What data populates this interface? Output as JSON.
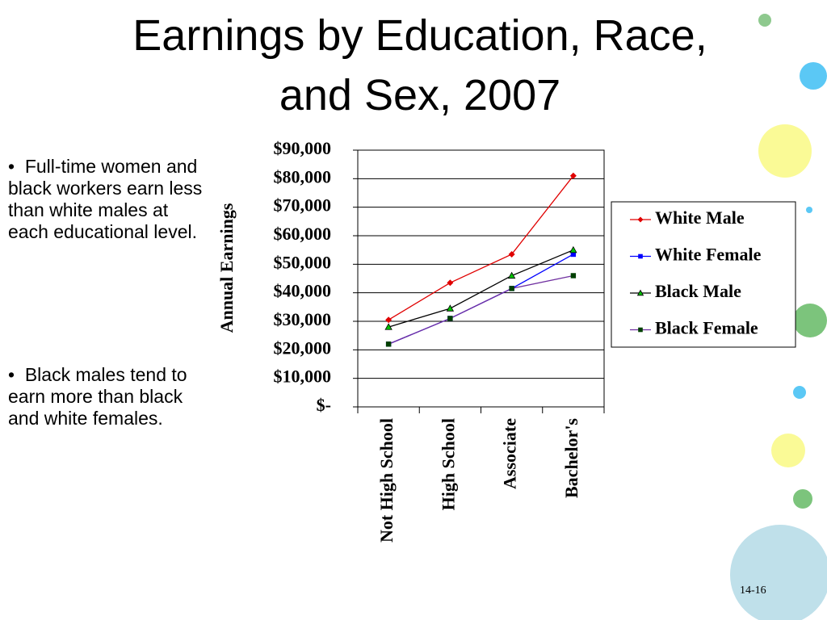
{
  "title": [
    "Earnings by  Education, Race,",
    "and Sex, 2007"
  ],
  "bullets": [
    "Full-time women and black workers earn less than white males at each educational level.",
    "Black males tend to earn more than black and white females."
  ],
  "page_number": "14-16",
  "chart_data": {
    "type": "line",
    "y_label": "Annual Earnings",
    "categories": [
      "Not High School",
      "High School",
      "Associate",
      "Bachelor's"
    ],
    "ylim": [
      0,
      90000
    ],
    "yticks": [
      {
        "value": 0,
        "label": "$-"
      },
      {
        "value": 10000,
        "label": "$10,000"
      },
      {
        "value": 20000,
        "label": "$20,000"
      },
      {
        "value": 30000,
        "label": "$30,000"
      },
      {
        "value": 40000,
        "label": "$40,000"
      },
      {
        "value": 50000,
        "label": "$50,000"
      },
      {
        "value": 60000,
        "label": "$60,000"
      },
      {
        "value": 70000,
        "label": "$70,000"
      },
      {
        "value": 80000,
        "label": "$80,000"
      },
      {
        "value": 90000,
        "label": "$90,000"
      }
    ],
    "grid": true,
    "series": [
      {
        "name": "White Male",
        "color": "#e00000",
        "marker": "diamond",
        "marker_color": "#e00000",
        "values": [
          30500,
          43500,
          53500,
          81000
        ]
      },
      {
        "name": "White Female",
        "color": "#0000ff",
        "marker": "square",
        "marker_color": "#0000ff",
        "values": [
          22000,
          31000,
          41500,
          53500
        ]
      },
      {
        "name": "Black Male",
        "color": "#000000",
        "marker": "triangle",
        "marker_color": "#00c000",
        "values": [
          28000,
          34500,
          46000,
          55000
        ]
      },
      {
        "name": "Black Female",
        "color": "#7030a0",
        "marker": "square",
        "marker_color": "#004000",
        "values": [
          22000,
          31000,
          41500,
          46000
        ]
      }
    ]
  }
}
